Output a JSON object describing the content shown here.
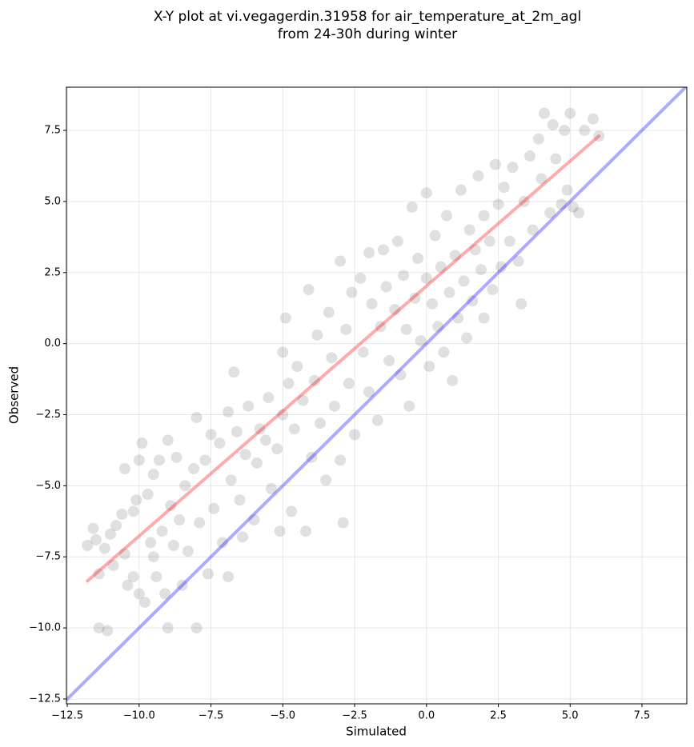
{
  "chart_data": {
    "type": "scatter",
    "title": [
      "X-Y plot at vi.vegagerdin.31958 for air_temperature_at_2m_agl",
      "from 24-30h during winter"
    ],
    "x_label": "Simulated",
    "y_label": "Observed",
    "xlim": [
      -12.53,
      9.06
    ],
    "ylim": [
      -12.67,
      9.02
    ],
    "xticks": [
      {
        "value": -12.5,
        "label": "−12.5"
      },
      {
        "value": -10,
        "label": "−10.0"
      },
      {
        "value": -7.5,
        "label": "−7.5"
      },
      {
        "value": -5,
        "label": "−5.0"
      },
      {
        "value": -2.5,
        "label": "−2.5"
      },
      {
        "value": 0,
        "label": "0.0"
      },
      2.5,
      {
        "value": 5,
        "label": "5.0"
      },
      7.5
    ],
    "yticks": [
      {
        "value": -12.5,
        "label": "−12.5"
      },
      {
        "value": -10,
        "label": "−10.0"
      },
      {
        "value": -7.5,
        "label": "−7.5"
      },
      {
        "value": -5,
        "label": "−5.0"
      },
      {
        "value": -2.5,
        "label": "−2.5"
      },
      {
        "value": 0,
        "label": "0.0"
      },
      2.5,
      {
        "value": 5,
        "label": "5.0"
      },
      7.5
    ],
    "grid": true,
    "series": [
      {
        "color": "#000000",
        "alpha": 0.12,
        "x": [
          -11.8,
          -11.6,
          -11.5,
          -11.4,
          -11.4,
          -11.1,
          -11.2,
          -11.0,
          -10.9,
          -10.8,
          -10.6,
          -10.5,
          -10.5,
          -10.4,
          -10.2,
          -10.2,
          -10.1,
          -10.0,
          -10.0,
          -9.9,
          -9.8,
          -9.7,
          -9.6,
          -9.5,
          -9.5,
          -9.4,
          -9.3,
          -9.2,
          -9.1,
          -9.0,
          -9.0,
          -8.9,
          -8.8,
          -8.7,
          -8.6,
          -8.5,
          -8.4,
          -8.3,
          -8.1,
          -8.0,
          -8.0,
          -7.9,
          -7.7,
          -7.6,
          -7.5,
          -7.4,
          -7.2,
          -7.1,
          -6.9,
          -6.9,
          -6.8,
          -6.7,
          -6.6,
          -6.5,
          -6.4,
          -6.3,
          -6.2,
          -6.0,
          -5.9,
          -5.8,
          -5.6,
          -5.5,
          -5.4,
          -5.2,
          -5.1,
          -5.0,
          -5.0,
          -4.9,
          -4.8,
          -4.7,
          -4.6,
          -4.5,
          -4.3,
          -4.2,
          -4.1,
          -4.0,
          -3.9,
          -3.8,
          -3.7,
          -3.5,
          -3.4,
          -3.3,
          -3.2,
          -3.0,
          -3.0,
          -2.9,
          -2.8,
          -2.7,
          -2.6,
          -2.5,
          -2.3,
          -2.2,
          -2.0,
          -2.0,
          -1.9,
          -1.7,
          -1.6,
          -1.5,
          -1.4,
          -1.3,
          -1.1,
          -1.0,
          -0.9,
          -0.8,
          -0.7,
          -0.6,
          -0.5,
          -0.4,
          -0.3,
          -0.2,
          0.0,
          0.0,
          0.1,
          0.2,
          0.3,
          0.4,
          0.5,
          0.6,
          0.7,
          0.8,
          0.9,
          1.0,
          1.1,
          1.2,
          1.3,
          1.4,
          1.5,
          1.6,
          1.7,
          1.8,
          1.9,
          2.0,
          2.0,
          2.2,
          2.3,
          2.4,
          2.5,
          2.6,
          2.7,
          2.9,
          3.0,
          3.2,
          3.3,
          3.4,
          3.6,
          3.7,
          3.9,
          4.0,
          4.1,
          4.3,
          4.4,
          4.5,
          4.7,
          4.8,
          4.9,
          5.0,
          5.1,
          5.3,
          5.5,
          5.8,
          6.0
        ],
        "values": [
          -7.1,
          -6.5,
          -6.9,
          -8.1,
          -10.0,
          -10.1,
          -7.2,
          -6.7,
          -7.8,
          -6.4,
          -6.0,
          -4.4,
          -7.4,
          -8.5,
          -5.9,
          -8.2,
          -5.5,
          -4.1,
          -8.8,
          -3.5,
          -9.1,
          -5.3,
          -7.0,
          -4.6,
          -7.5,
          -8.2,
          -4.1,
          -6.6,
          -8.8,
          -10.0,
          -3.4,
          -5.7,
          -7.1,
          -4.0,
          -6.2,
          -8.5,
          -5.0,
          -7.3,
          -4.4,
          -10.0,
          -2.6,
          -6.3,
          -4.1,
          -8.1,
          -3.2,
          -5.8,
          -3.5,
          -7.0,
          -2.4,
          -8.2,
          -4.8,
          -1.0,
          -3.1,
          -5.5,
          -6.8,
          -3.9,
          -2.2,
          -6.2,
          -4.2,
          -3.0,
          -3.4,
          -1.9,
          -5.1,
          -3.7,
          -6.6,
          -0.3,
          -2.5,
          0.9,
          -1.4,
          -5.9,
          -3.0,
          -0.8,
          -2.0,
          -6.6,
          1.9,
          -4.0,
          -1.3,
          0.3,
          -2.8,
          -4.8,
          1.1,
          -0.5,
          -2.2,
          2.9,
          -4.1,
          -6.3,
          0.5,
          -1.4,
          1.8,
          -3.2,
          2.3,
          -0.3,
          3.2,
          -1.7,
          1.4,
          -2.7,
          0.6,
          3.3,
          2.0,
          -0.6,
          1.2,
          3.6,
          -1.1,
          2.4,
          0.5,
          -2.2,
          4.8,
          1.6,
          3.0,
          0.1,
          2.3,
          5.3,
          -0.8,
          1.4,
          3.8,
          0.6,
          2.7,
          -0.3,
          4.5,
          1.8,
          -1.3,
          3.1,
          0.9,
          5.4,
          2.2,
          0.2,
          4.0,
          1.5,
          3.3,
          5.9,
          2.6,
          0.9,
          4.5,
          3.6,
          1.9,
          6.3,
          4.9,
          2.7,
          5.5,
          3.6,
          6.2,
          2.9,
          1.4,
          5.0,
          6.6,
          4.0,
          7.2,
          5.8,
          8.1,
          4.6,
          7.7,
          6.5,
          4.9,
          7.5,
          5.4,
          8.1,
          4.8,
          4.6,
          7.5,
          7.9,
          7.3
        ]
      }
    ],
    "lines": [
      {
        "color": "#0000ff",
        "alpha": 0.33,
        "x": [
          -12.53,
          9.06
        ],
        "values": [
          -12.53,
          9.06
        ]
      },
      {
        "color": "#ff0000",
        "alpha": 0.33,
        "x": [
          -11.8,
          6.0
        ],
        "values": [
          -8.35,
          7.3
        ]
      }
    ]
  }
}
